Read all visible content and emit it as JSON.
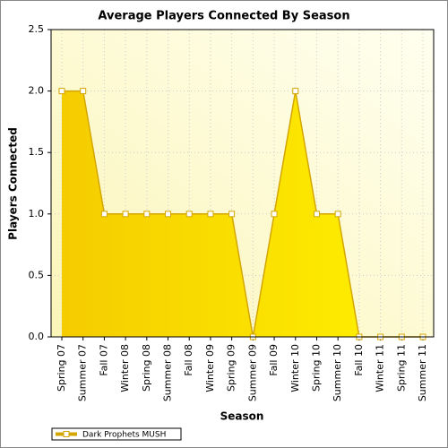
{
  "chart_data": {
    "type": "area",
    "title": "Average Players Connected By Season",
    "x_label": "Season",
    "y_label": "Players Connected",
    "categories": [
      "Spring 07",
      "Summer 07",
      "Fall 07",
      "Winter 08",
      "Spring 08",
      "Summer 08",
      "Fall 08",
      "Winter 09",
      "Spring 09",
      "Summer 09",
      "Fall 09",
      "Winter 10",
      "Spring 10",
      "Summer 10",
      "Fall 10",
      "Winter 11",
      "Spring 11",
      "Summer 11"
    ],
    "series": [
      {
        "name": "Dark Prophets MUSH",
        "color": "#f2d000",
        "values": [
          2,
          2,
          1,
          1,
          1,
          1,
          1,
          1,
          1,
          0,
          1,
          2,
          1,
          1,
          0,
          0,
          0,
          0
        ]
      }
    ],
    "ylim": [
      0,
      2.5
    ],
    "yticks": [
      {
        "value": 0,
        "label": "0.0"
      },
      0.5,
      {
        "value": 1,
        "label": "1.0"
      },
      1.5,
      {
        "value": 2,
        "label": "2.0"
      },
      2.5
    ],
    "grid": true,
    "legend": "bottom-left"
  }
}
